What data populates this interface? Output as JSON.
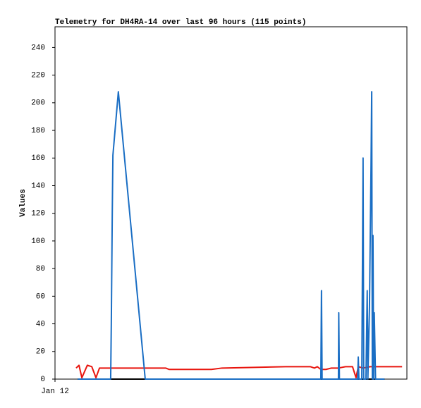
{
  "chart_data": {
    "type": "line",
    "title": "Telemetry for DH4RA-14 over last 96 hours (115 points)",
    "y_label": "Values",
    "xlim": [
      0,
      110
    ],
    "xticks": [
      {
        "value": 0,
        "label": "Jan 12"
      }
    ],
    "ylim": [
      0,
      255
    ],
    "yticks": [
      0,
      20,
      40,
      60,
      80,
      100,
      120,
      140,
      160,
      180,
      200,
      220,
      240
    ],
    "grid": false,
    "series": [
      {
        "color": "#e8150e",
        "x": [
          6.6,
          7.5,
          8.4,
          10.1,
          11.5,
          12.8,
          13.9,
          34.6,
          35.7,
          48.9,
          52.2,
          62.2,
          72.1,
          79.8,
          81.1,
          82.0,
          83.1,
          84.7,
          86.4,
          88.6,
          90.8,
          93.0,
          94.1,
          94.8,
          96.3,
          98.5,
          103.0,
          108.5
        ],
        "values": [
          8,
          10,
          1,
          10,
          9,
          1,
          8,
          8,
          7,
          7,
          8,
          8.5,
          9,
          9,
          8,
          9,
          7,
          7,
          8,
          8,
          9,
          9,
          1,
          9,
          8,
          9,
          9,
          9
        ]
      },
      {
        "color": "#000000",
        "x": [
          7.1,
          103.0
        ],
        "values": [
          0,
          0
        ]
      },
      {
        "color": "#1a6ec4",
        "x": [
          7.1,
          17.4,
          17.6,
          17.9,
          18.1,
          19.8,
          28.2,
          83.1,
          83.2,
          83.3,
          83.5,
          88.6,
          88.7,
          88.9,
          94.6,
          94.8,
          95.0,
          95.9,
          96.1,
          96.3,
          96.5,
          97.2,
          97.4,
          97.6,
          97.8,
          98.3,
          98.8,
          99.0,
          99.2,
          99.4,
          99.6,
          99.8,
          100.0,
          100.2,
          103.0
        ],
        "values": [
          0,
          0,
          40,
          120,
          162,
          208,
          0,
          0,
          32,
          64,
          0,
          0,
          48,
          0,
          0,
          16,
          0,
          0,
          80,
          160,
          0,
          0,
          32,
          64,
          0,
          52,
          156,
          208,
          0,
          104,
          0,
          48,
          24,
          0,
          0
        ]
      }
    ]
  }
}
